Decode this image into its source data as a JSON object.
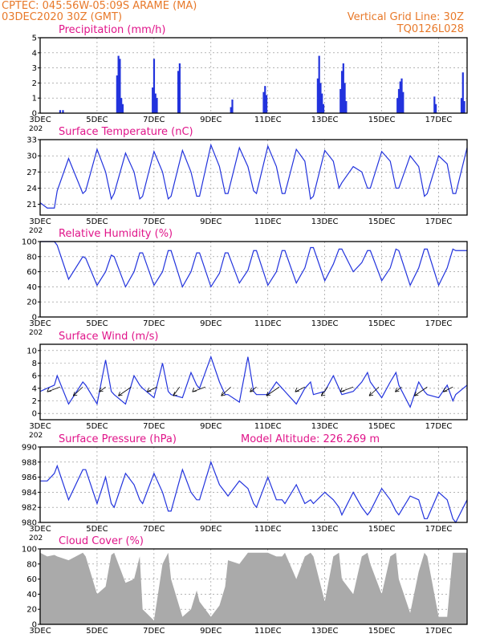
{
  "header": {
    "line1": "CPTEC:  045:56W-05:09S  ARAME (MA)",
    "line2": "03DEC2020 30Z (GMT)",
    "right1": "Vertical Grid Line: 30Z",
    "right2": "TQ0126L028"
  },
  "colors": {
    "header": "#e8792a",
    "title": "#e0158a",
    "line": "#2233dd",
    "cloud": "#aaaaaa",
    "grid": "#888888"
  },
  "chart_data": [
    {
      "type": "bar",
      "title": "Precipitation (mm/h)",
      "xticks": [
        "3DEC",
        "5DEC",
        "7DEC",
        "9DEC",
        "11DEC",
        "13DEC",
        "15DEC",
        "17DEC"
      ],
      "ylim": [
        0,
        5
      ],
      "yticks": [
        0,
        1,
        2,
        3,
        4,
        5
      ],
      "grid": true,
      "events": [
        {
          "day": 3.7,
          "value": 0.2
        },
        {
          "day": 3.8,
          "value": 0.2
        },
        {
          "day": 5.7,
          "value": 2.5
        },
        {
          "day": 5.75,
          "value": 3.8
        },
        {
          "day": 5.8,
          "value": 3.6
        },
        {
          "day": 5.85,
          "value": 1.0
        },
        {
          "day": 5.9,
          "value": 0.6
        },
        {
          "day": 6.95,
          "value": 1.7
        },
        {
          "day": 7.0,
          "value": 3.6
        },
        {
          "day": 7.05,
          "value": 1.3
        },
        {
          "day": 7.1,
          "value": 1.0
        },
        {
          "day": 7.85,
          "value": 2.8
        },
        {
          "day": 7.9,
          "value": 3.3
        },
        {
          "day": 9.7,
          "value": 0.4
        },
        {
          "day": 9.75,
          "value": 0.9
        },
        {
          "day": 10.85,
          "value": 1.4
        },
        {
          "day": 10.9,
          "value": 1.8
        },
        {
          "day": 10.95,
          "value": 1.2
        },
        {
          "day": 12.75,
          "value": 2.3
        },
        {
          "day": 12.8,
          "value": 3.8
        },
        {
          "day": 12.85,
          "value": 2.0
        },
        {
          "day": 12.9,
          "value": 1.3
        },
        {
          "day": 12.95,
          "value": 0.6
        },
        {
          "day": 13.55,
          "value": 1.6
        },
        {
          "day": 13.6,
          "value": 2.8
        },
        {
          "day": 13.65,
          "value": 3.3
        },
        {
          "day": 13.7,
          "value": 2.0
        },
        {
          "day": 13.75,
          "value": 0.8
        },
        {
          "day": 15.55,
          "value": 1.0
        },
        {
          "day": 15.6,
          "value": 1.6
        },
        {
          "day": 15.65,
          "value": 2.1
        },
        {
          "day": 15.7,
          "value": 2.3
        },
        {
          "day": 15.75,
          "value": 1.4
        },
        {
          "day": 16.85,
          "value": 1.1
        },
        {
          "day": 16.9,
          "value": 0.6
        },
        {
          "day": 17.8,
          "value": 1.0
        },
        {
          "day": 17.85,
          "value": 2.7
        },
        {
          "day": 17.9,
          "value": 0.8
        }
      ]
    },
    {
      "type": "line",
      "title": "Surface Temperature (nC)",
      "xticks": [
        "3DEC",
        "5DEC",
        "7DEC",
        "9DEC",
        "11DEC",
        "13DEC",
        "15DEC",
        "17DEC"
      ],
      "ylim": [
        19,
        33
      ],
      "yticks": [
        21,
        24,
        27,
        30,
        33
      ],
      "grid": true,
      "x_days": [
        3.0,
        3.25,
        3.5,
        3.6,
        4.0,
        4.5,
        4.6,
        5.0,
        5.3,
        5.5,
        5.6,
        6.0,
        6.3,
        6.5,
        6.6,
        7.0,
        7.3,
        7.5,
        7.6,
        8.0,
        8.3,
        8.5,
        8.6,
        9.0,
        9.3,
        9.5,
        9.6,
        10.0,
        10.3,
        10.5,
        10.6,
        11.0,
        11.3,
        11.5,
        11.6,
        12.0,
        12.3,
        12.5,
        12.6,
        13.0,
        13.3,
        13.5,
        13.6,
        14.0,
        14.3,
        14.5,
        14.6,
        15.0,
        15.3,
        15.5,
        15.6,
        16.0,
        16.3,
        16.5,
        16.6,
        17.0,
        17.3,
        17.5,
        17.6,
        18.0
      ],
      "values": [
        21.3,
        20.3,
        20.3,
        23.5,
        29.5,
        23.0,
        23.5,
        31.2,
        27.0,
        22.0,
        23.0,
        30.5,
        27.0,
        22.0,
        22.5,
        30.8,
        27.0,
        22.0,
        22.5,
        31.0,
        27.0,
        22.5,
        22.5,
        32.0,
        28.0,
        23.0,
        23.0,
        31.5,
        28.0,
        23.5,
        23.0,
        31.8,
        28.0,
        23.0,
        23.0,
        31.2,
        29.0,
        22.0,
        22.5,
        31.0,
        29.0,
        24.0,
        25.0,
        28.0,
        27.0,
        24.0,
        24.0,
        30.8,
        29.0,
        24.0,
        24.0,
        30.0,
        28.0,
        22.5,
        23.0,
        30.0,
        28.5,
        23.0,
        23.0,
        31.5
      ]
    },
    {
      "type": "line",
      "title": "Relative Humidity (%)",
      "xticks": [
        "3DEC",
        "5DEC",
        "7DEC",
        "9DEC",
        "11DEC",
        "13DEC",
        "15DEC",
        "17DEC"
      ],
      "ylim": [
        0,
        100
      ],
      "yticks": [
        0,
        20,
        40,
        60,
        80,
        100
      ],
      "grid": true,
      "x_days": [
        3.0,
        3.25,
        3.5,
        3.6,
        4.0,
        4.5,
        4.6,
        5.0,
        5.3,
        5.5,
        5.6,
        6.0,
        6.3,
        6.5,
        6.6,
        7.0,
        7.3,
        7.5,
        7.6,
        8.0,
        8.3,
        8.5,
        8.6,
        9.0,
        9.3,
        9.5,
        9.6,
        10.0,
        10.3,
        10.5,
        10.6,
        11.0,
        11.3,
        11.5,
        11.6,
        12.0,
        12.3,
        12.5,
        12.6,
        13.0,
        13.3,
        13.5,
        13.6,
        14.0,
        14.3,
        14.5,
        14.6,
        15.0,
        15.3,
        15.5,
        15.6,
        16.0,
        16.3,
        16.5,
        16.6,
        17.0,
        17.3,
        17.5,
        17.6,
        18.0
      ],
      "values": [
        100,
        100,
        100,
        95,
        50,
        80,
        78,
        42,
        60,
        82,
        80,
        40,
        60,
        85,
        85,
        42,
        60,
        88,
        88,
        40,
        60,
        85,
        85,
        40,
        58,
        85,
        85,
        45,
        62,
        88,
        88,
        42,
        60,
        88,
        88,
        45,
        65,
        92,
        92,
        48,
        70,
        90,
        90,
        60,
        72,
        88,
        88,
        48,
        65,
        90,
        88,
        42,
        65,
        90,
        90,
        42,
        65,
        90,
        88,
        88
      ]
    },
    {
      "type": "line",
      "title": "Surface Wind (m/s)",
      "xticks": [
        "3DEC",
        "5DEC",
        "7DEC",
        "9DEC",
        "11DEC",
        "13DEC",
        "15DEC",
        "17DEC"
      ],
      "ylim": [
        -1,
        11
      ],
      "yticks": [
        0,
        2,
        4,
        6,
        8,
        10
      ],
      "grid": true,
      "x_days": [
        3.0,
        3.25,
        3.5,
        3.6,
        4.0,
        4.5,
        4.6,
        5.0,
        5.3,
        5.5,
        5.6,
        6.0,
        6.3,
        6.5,
        6.6,
        7.0,
        7.3,
        7.5,
        7.6,
        8.0,
        8.3,
        8.5,
        8.6,
        9.0,
        9.3,
        9.5,
        9.6,
        10.0,
        10.3,
        10.5,
        10.6,
        11.0,
        11.3,
        11.5,
        11.6,
        12.0,
        12.3,
        12.5,
        12.6,
        13.0,
        13.3,
        13.5,
        13.6,
        14.0,
        14.3,
        14.5,
        14.6,
        15.0,
        15.3,
        15.5,
        15.6,
        16.0,
        16.3,
        16.5,
        16.6,
        17.0,
        17.3,
        17.5,
        17.6,
        18.0
      ],
      "values": [
        3.5,
        4.0,
        4.5,
        6.0,
        1.5,
        5.0,
        4.5,
        1.5,
        8.5,
        3.5,
        3.0,
        1.5,
        6.0,
        4.5,
        4.0,
        2.5,
        8.0,
        3.5,
        3.0,
        2.5,
        6.5,
        4.5,
        4.0,
        9.0,
        5.0,
        3.0,
        3.0,
        1.8,
        9.0,
        3.5,
        3.0,
        3.0,
        5.0,
        4.0,
        3.5,
        1.5,
        4.0,
        5.0,
        3.0,
        3.5,
        6.0,
        4.0,
        3.0,
        3.5,
        5.0,
        6.5,
        5.0,
        2.5,
        5.0,
        6.5,
        4.5,
        1.0,
        5.0,
        3.5,
        3.0,
        2.5,
        4.5,
        2.0,
        3.0,
        4.5
      ],
      "arrows_days": [
        3.7,
        4.5,
        5.3,
        6.2,
        7.1,
        7.9,
        8.8,
        9.7,
        10.6,
        11.4,
        12.3,
        13.1,
        14.0,
        14.9,
        15.7,
        16.6,
        17.5
      ]
    },
    {
      "type": "line",
      "title": "Surface Pressure (hPa)",
      "annotation": "Model Altitude: 226.269 m",
      "xticks": [
        "3DEC",
        "5DEC",
        "7DEC",
        "9DEC",
        "11DEC",
        "13DEC",
        "15DEC",
        "17DEC"
      ],
      "ylim": [
        980,
        990
      ],
      "yticks": [
        980,
        982,
        984,
        986,
        988,
        990
      ],
      "grid": true,
      "x_days": [
        3.0,
        3.25,
        3.5,
        3.6,
        4.0,
        4.5,
        4.6,
        5.0,
        5.3,
        5.5,
        5.6,
        6.0,
        6.3,
        6.5,
        6.6,
        7.0,
        7.3,
        7.5,
        7.6,
        8.0,
        8.3,
        8.5,
        8.6,
        9.0,
        9.3,
        9.5,
        9.6,
        10.0,
        10.3,
        10.5,
        10.6,
        11.0,
        11.3,
        11.5,
        11.6,
        12.0,
        12.3,
        12.5,
        12.6,
        13.0,
        13.3,
        13.5,
        13.6,
        14.0,
        14.3,
        14.5,
        14.6,
        15.0,
        15.3,
        15.5,
        15.6,
        16.0,
        16.3,
        16.5,
        16.6,
        17.0,
        17.3,
        17.5,
        17.6,
        18.0
      ],
      "values": [
        985.5,
        985.5,
        986.5,
        987.5,
        983.0,
        987.0,
        987.0,
        982.5,
        986.0,
        982.5,
        982.0,
        986.5,
        985.0,
        983.0,
        982.5,
        986.5,
        984.0,
        981.5,
        981.5,
        987.0,
        984.0,
        983.0,
        983.0,
        988.0,
        985.0,
        984.0,
        983.5,
        985.5,
        984.5,
        982.5,
        982.0,
        986.0,
        983.0,
        983.0,
        982.5,
        985.0,
        982.5,
        983.0,
        982.5,
        984.0,
        983.0,
        982.0,
        981.0,
        984.0,
        982.0,
        981.0,
        981.5,
        984.5,
        983.0,
        981.5,
        981.0,
        983.5,
        983.0,
        980.5,
        980.5,
        984.0,
        983.0,
        980.5,
        980.0,
        983.0
      ]
    },
    {
      "type": "area",
      "title": "Cloud Cover (%)",
      "xticks": [
        "3DEC",
        "5DEC",
        "7DEC",
        "9DEC",
        "11DEC",
        "13DEC",
        "15DEC",
        "17DEC"
      ],
      "ylim": [
        0,
        100
      ],
      "yticks": [
        0,
        20,
        40,
        60,
        80,
        100
      ],
      "grid": true,
      "x_days": [
        3.0,
        3.25,
        3.5,
        3.6,
        4.0,
        4.5,
        4.6,
        5.0,
        5.3,
        5.5,
        5.6,
        6.0,
        6.3,
        6.5,
        6.6,
        7.0,
        7.3,
        7.5,
        7.6,
        8.0,
        8.3,
        8.5,
        8.6,
        9.0,
        9.3,
        9.5,
        9.6,
        10.0,
        10.3,
        10.5,
        10.6,
        11.0,
        11.3,
        11.5,
        11.6,
        12.0,
        12.3,
        12.5,
        12.6,
        13.0,
        13.3,
        13.5,
        13.6,
        14.0,
        14.3,
        14.5,
        14.6,
        15.0,
        15.3,
        15.5,
        15.6,
        16.0,
        16.3,
        16.5,
        16.6,
        17.0,
        17.3,
        17.5,
        17.6,
        18.0
      ],
      "values": [
        95,
        90,
        92,
        90,
        85,
        95,
        90,
        40,
        50,
        92,
        95,
        55,
        60,
        90,
        20,
        5,
        80,
        95,
        60,
        10,
        20,
        45,
        30,
        10,
        25,
        50,
        85,
        80,
        95,
        95,
        95,
        95,
        90,
        90,
        95,
        60,
        90,
        95,
        90,
        30,
        90,
        95,
        60,
        40,
        90,
        95,
        80,
        40,
        90,
        95,
        60,
        15,
        70,
        95,
        90,
        10,
        10,
        95,
        95,
        95
      ]
    }
  ]
}
